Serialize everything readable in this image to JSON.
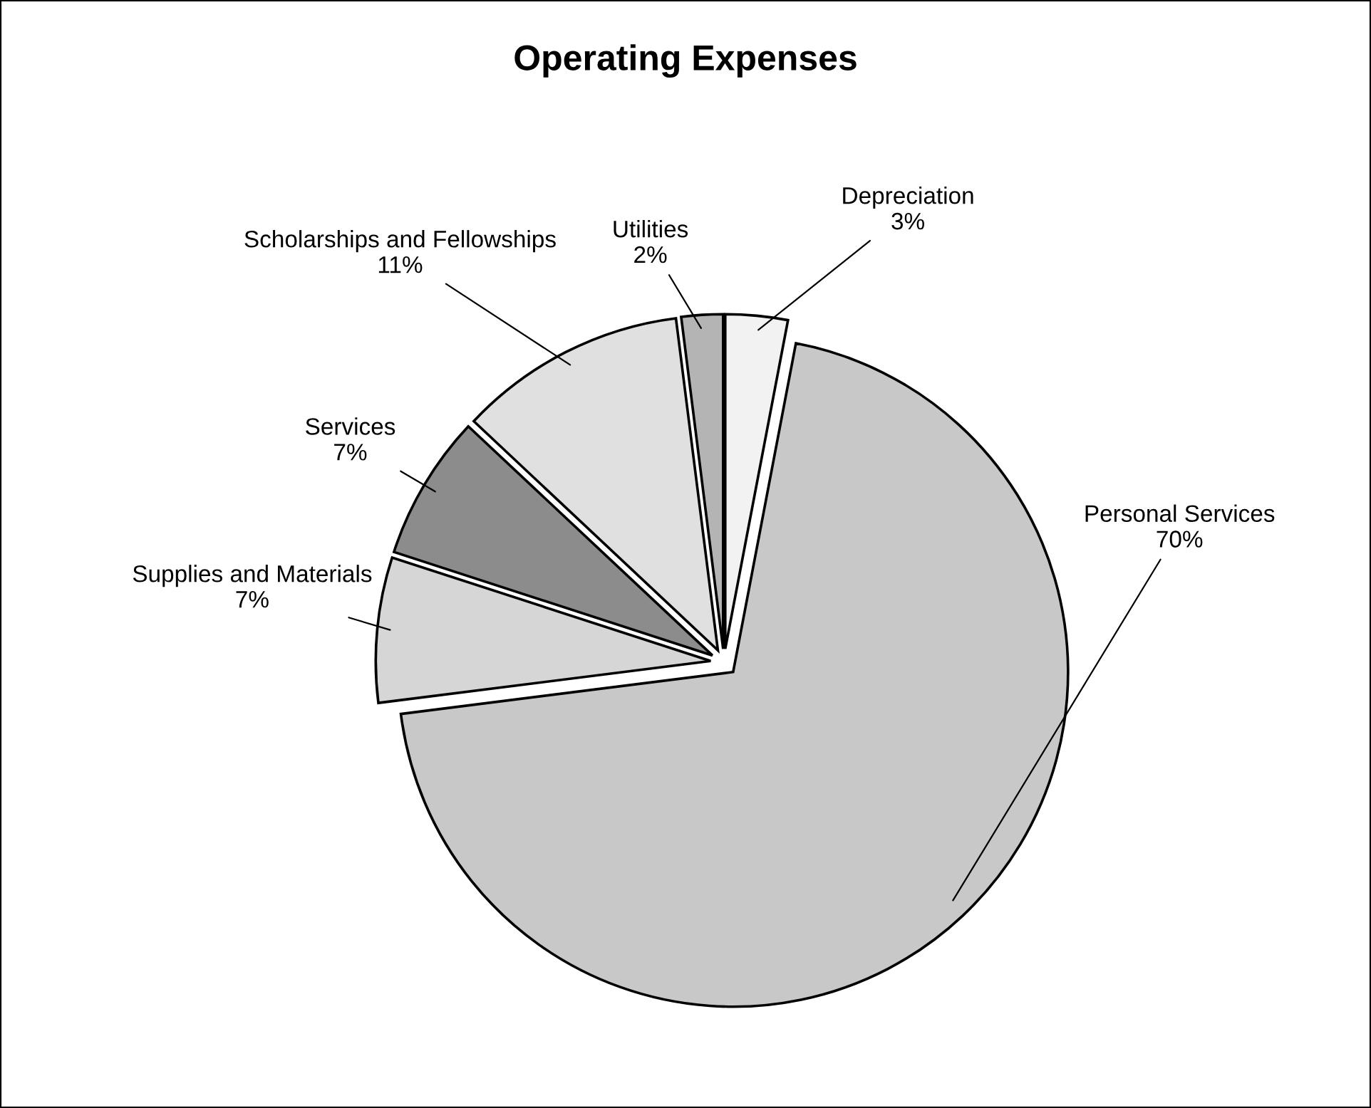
{
  "chart_data": {
    "type": "pie",
    "title": "Operating Expenses",
    "categories": [
      "Depreciation",
      "Personal Services",
      "Supplies and Materials",
      "Services",
      "Scholarships and Fellowships",
      "Utilities"
    ],
    "values": [
      3,
      70,
      7,
      7,
      11,
      2
    ],
    "value_labels": [
      "3%",
      "70%",
      "7%",
      "7%",
      "11%",
      "2%"
    ],
    "colors": [
      "#f2f2f2",
      "#c8c8c8",
      "#d6d6d6",
      "#8c8c8c",
      "#e0e0e0",
      "#b4b4b4"
    ],
    "legend": false
  }
}
